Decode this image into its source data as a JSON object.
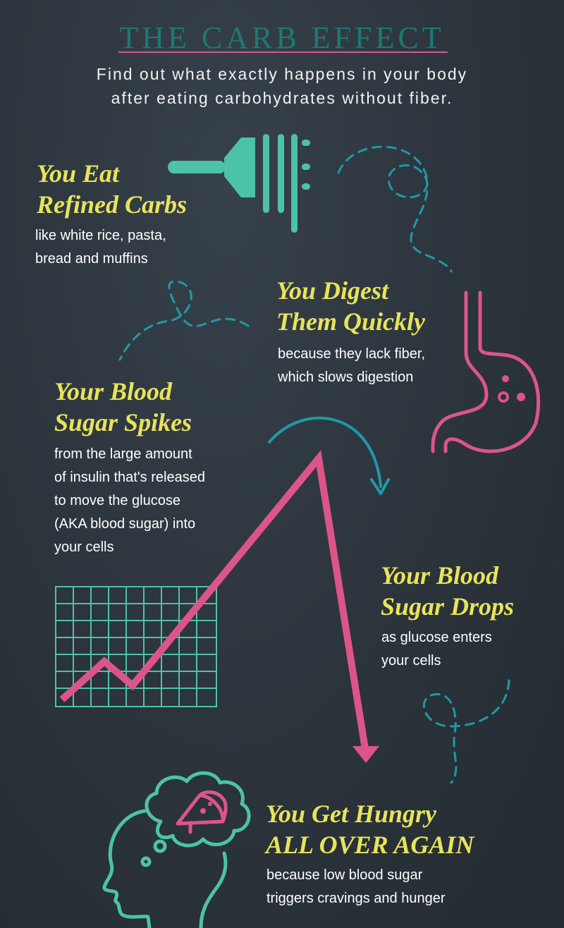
{
  "header": {
    "title": "THE CARB EFFECT",
    "subtitle_line1": "Find out what exactly happens in your body",
    "subtitle_line2": "after eating carbohydrates without fiber."
  },
  "steps": [
    {
      "heading": [
        "You Eat",
        "Refined Carbs"
      ],
      "body": [
        "like white rice, pasta,",
        "bread and muffins"
      ]
    },
    {
      "heading": [
        "You Digest",
        "Them Quickly"
      ],
      "body": [
        "because they lack fiber,",
        "which slows digestion"
      ]
    },
    {
      "heading": [
        "Your Blood",
        "Sugar Spikes"
      ],
      "body": [
        "from the large amount",
        "of insulin that's released",
        "to move the glucose",
        "(AKA blood sugar) into",
        "your cells"
      ]
    },
    {
      "heading": [
        "Your Blood",
        "Sugar Drops"
      ],
      "body": [
        "as glucose enters",
        "your cells"
      ]
    },
    {
      "heading": [
        "You Get Hungry",
        "ALL OVER AGAIN"
      ],
      "body": [
        "because low blood sugar",
        "triggers cravings and hunger"
      ]
    }
  ],
  "colors": {
    "teal": "#4cc3a6",
    "pink": "#dd5588",
    "dashed_teal": "#1e9aa5",
    "yellow": "#e8e45a",
    "title_teal": "#1b7a72"
  },
  "icons": [
    "fork-pasta-icon",
    "stomach-icon",
    "blood-sugar-graph-icon",
    "head-thinking-pizza-icon"
  ]
}
